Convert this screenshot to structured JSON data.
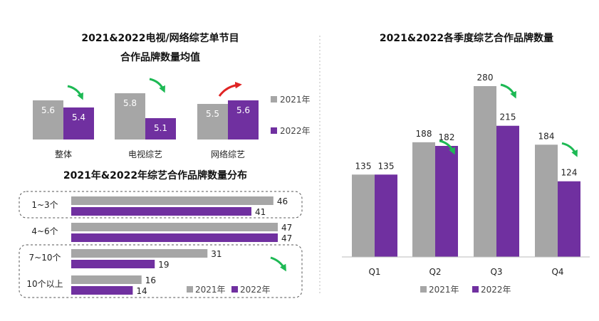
{
  "colors": {
    "y2021": "#A6A6A6",
    "y2022": "#7030A0",
    "down_arrow": "#1DB954",
    "up_arrow": "#E02424"
  },
  "legend": {
    "y2021": "2021年",
    "y2022": "2022年"
  },
  "chart_data": [
    {
      "type": "bar",
      "title_line1": "2021&2022电视/网络综艺单节目",
      "title_line2": "合作品牌数量均值",
      "categories": [
        "整体",
        "电视综艺",
        "网络综艺"
      ],
      "series": [
        {
          "name": "2021年",
          "values": [
            5.6,
            5.8,
            5.5
          ]
        },
        {
          "name": "2022年",
          "values": [
            5.4,
            5.1,
            5.6
          ]
        }
      ],
      "trend_arrows": [
        "down",
        "down",
        "up"
      ],
      "ylim": [
        4.5,
        6.0
      ]
    },
    {
      "type": "bar",
      "orientation": "horizontal",
      "title": "2021年&2022年综艺合作品牌数量分布",
      "categories": [
        "1~3个",
        "4~6个",
        "7~10个",
        "10个以上"
      ],
      "series": [
        {
          "name": "2021年",
          "values": [
            46,
            47,
            31,
            16
          ]
        },
        {
          "name": "2022年",
          "values": [
            41,
            47,
            19,
            14
          ]
        }
      ],
      "xlim": [
        0,
        47
      ]
    },
    {
      "type": "bar",
      "title": "2021&2022各季度综艺合作品牌数量",
      "categories": [
        "Q1",
        "Q2",
        "Q3",
        "Q4"
      ],
      "series": [
        {
          "name": "2021年",
          "values": [
            135,
            188,
            280,
            184
          ]
        },
        {
          "name": "2022年",
          "values": [
            135,
            182,
            215,
            124
          ]
        }
      ],
      "trend_arrows": [
        "none",
        "down",
        "down",
        "down"
      ],
      "ylim": [
        0,
        280
      ]
    }
  ]
}
